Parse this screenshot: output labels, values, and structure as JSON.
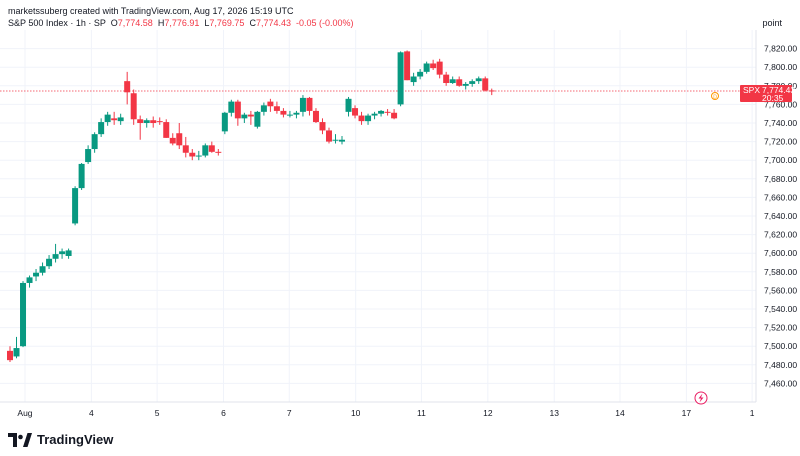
{
  "header": {
    "creator": "marketssuberg created with TradingView.com, Aug 17, 2026 15:19 UTC"
  },
  "legend": {
    "symbol": "S&P 500 Index · 1h · SP",
    "o_label": "O",
    "o": "7,774.58",
    "h_label": "H",
    "h": "7,776.91",
    "l_label": "L",
    "l": "7,769.75",
    "c_label": "C",
    "c": "7,774.43",
    "change": "-0.05 (-0.00%)"
  },
  "price_unit": "point",
  "last_price": {
    "symbol": "SPX",
    "value": "7,774.43",
    "countdown": "20:35"
  },
  "brand": "TradingView",
  "colors": {
    "up": "#089981",
    "down": "#f23645",
    "grid": "#f0f3fa",
    "axis_text": "#131722"
  },
  "chart_data": {
    "type": "candlestick",
    "title": "S&P 500 Index · 1h · SP",
    "ylim": [
      7440,
      7840
    ],
    "yticks": [
      7460,
      7480,
      7500,
      7520,
      7540,
      7560,
      7580,
      7600,
      7620,
      7640,
      7660,
      7680,
      7700,
      7720,
      7740,
      7760,
      7780,
      7800,
      7820
    ],
    "ytick_labels": [
      "7,460.00",
      "7,480.00",
      "7,500.00",
      "7,520.00",
      "7,540.00",
      "7,560.00",
      "7,580.00",
      "7,600.00",
      "7,620.00",
      "7,640.00",
      "7,660.00",
      "7,680.00",
      "7,700.00",
      "7,720.00",
      "7,740.00",
      "7,760.00",
      "7,780.00",
      "7,800.00",
      "7,820.00"
    ],
    "xtick_labels": [
      {
        "label": "Aug",
        "bar": 2.3
      },
      {
        "label": "4",
        "bar": 12.5
      },
      {
        "label": "5",
        "bar": 22.6
      },
      {
        "label": "6",
        "bar": 32.8
      },
      {
        "label": "7",
        "bar": 42.9
      },
      {
        "label": "10",
        "bar": 53.1
      },
      {
        "label": "11",
        "bar": 63.2
      },
      {
        "label": "12",
        "bar": 73.4
      },
      {
        "label": "13",
        "bar": 83.6
      },
      {
        "label": "14",
        "bar": 93.7
      },
      {
        "label": "17",
        "bar": 103.9
      },
      {
        "label": "1",
        "bar": 114.0
      }
    ],
    "last_close": 7774.43,
    "candles": [
      [
        7495,
        7500,
        7483,
        7485
      ],
      [
        7489,
        7510,
        7487,
        7498
      ],
      [
        7500,
        7570,
        7499,
        7568
      ],
      [
        7568,
        7576,
        7563,
        7574
      ],
      [
        7575,
        7583,
        7570,
        7579
      ],
      [
        7579,
        7590,
        7576,
        7586
      ],
      [
        7586,
        7598,
        7583,
        7594
      ],
      [
        7594,
        7610,
        7590,
        7599
      ],
      [
        7599,
        7605,
        7594,
        7602
      ],
      [
        7597,
        7605,
        7594,
        7603
      ],
      [
        7632,
        7672,
        7630,
        7670
      ],
      [
        7670,
        7697,
        7668,
        7696
      ],
      [
        7698,
        7716,
        7696,
        7712
      ],
      [
        7712,
        7730,
        7708,
        7728
      ],
      [
        7728,
        7745,
        7725,
        7741
      ],
      [
        7741,
        7752,
        7737,
        7749
      ],
      [
        7745,
        7752,
        7738,
        7743
      ],
      [
        7742,
        7750,
        7738,
        7746
      ],
      [
        7785,
        7795,
        7760,
        7773
      ],
      [
        7772,
        7776,
        7738,
        7744
      ],
      [
        7744,
        7748,
        7722,
        7740
      ],
      [
        7740,
        7745,
        7735,
        7743
      ],
      [
        7743,
        7747,
        7735,
        7740
      ],
      [
        7742,
        7746,
        7738,
        7741
      ],
      [
        7741,
        7744,
        7724,
        7724
      ],
      [
        7724,
        7729,
        7716,
        7718
      ],
      [
        7729,
        7740,
        7712,
        7716
      ],
      [
        7716,
        7725,
        7703,
        7708
      ],
      [
        7708,
        7712,
        7700,
        7704
      ],
      [
        7704,
        7710,
        7700,
        7705
      ],
      [
        7705,
        7718,
        7703,
        7716
      ],
      [
        7716,
        7720,
        7708,
        7709
      ],
      [
        7709,
        7712,
        7705,
        7708
      ],
      [
        7731,
        7752,
        7728,
        7751
      ],
      [
        7751,
        7765,
        7747,
        7763
      ],
      [
        7763,
        7765,
        7737,
        7745
      ],
      [
        7745,
        7751,
        7740,
        7749
      ],
      [
        7749,
        7753,
        7738,
        7747
      ],
      [
        7736,
        7753,
        7734,
        7752
      ],
      [
        7752,
        7762,
        7748,
        7759
      ],
      [
        7763,
        7766,
        7752,
        7758
      ],
      [
        7758,
        7763,
        7750,
        7753
      ],
      [
        7753,
        7756,
        7746,
        7749
      ],
      [
        7749,
        7753,
        7746,
        7749
      ],
      [
        7749,
        7753,
        7745,
        7751
      ],
      [
        7752,
        7770,
        7747,
        7767
      ],
      [
        7767,
        7768,
        7748,
        7753
      ],
      [
        7753,
        7756,
        7740,
        7741
      ],
      [
        7741,
        7745,
        7728,
        7732
      ],
      [
        7732,
        7735,
        7718,
        7720
      ],
      [
        7722,
        7728,
        7718,
        7722
      ],
      [
        7720,
        7726,
        7717,
        7722
      ],
      [
        7752,
        7768,
        7747,
        7766
      ],
      [
        7756,
        7759,
        7745,
        7748
      ],
      [
        7748,
        7752,
        7738,
        7742
      ],
      [
        7742,
        7750,
        7738,
        7748
      ],
      [
        7748,
        7752,
        7744,
        7750
      ],
      [
        7750,
        7754,
        7747,
        7753
      ],
      [
        7752,
        7755,
        7748,
        7751
      ],
      [
        7751,
        7755,
        7744,
        7745
      ],
      [
        7760,
        7817,
        7758,
        7816
      ],
      [
        7817,
        7818,
        7786,
        7786
      ],
      [
        7784,
        7794,
        7780,
        7790
      ],
      [
        7790,
        7798,
        7787,
        7795
      ],
      [
        7795,
        7806,
        7793,
        7804
      ],
      [
        7804,
        7808,
        7797,
        7799
      ],
      [
        7806,
        7809,
        7788,
        7792
      ],
      [
        7792,
        7795,
        7780,
        7783
      ],
      [
        7783,
        7790,
        7782,
        7787
      ],
      [
        7787,
        7790,
        7779,
        7780
      ],
      [
        7780,
        7784,
        7776,
        7782
      ],
      [
        7782,
        7787,
        7779,
        7785
      ],
      [
        7785,
        7790,
        7782,
        7788
      ],
      [
        7788,
        7790,
        7774,
        7775
      ],
      [
        7775,
        7777,
        7770,
        7774
      ]
    ]
  }
}
